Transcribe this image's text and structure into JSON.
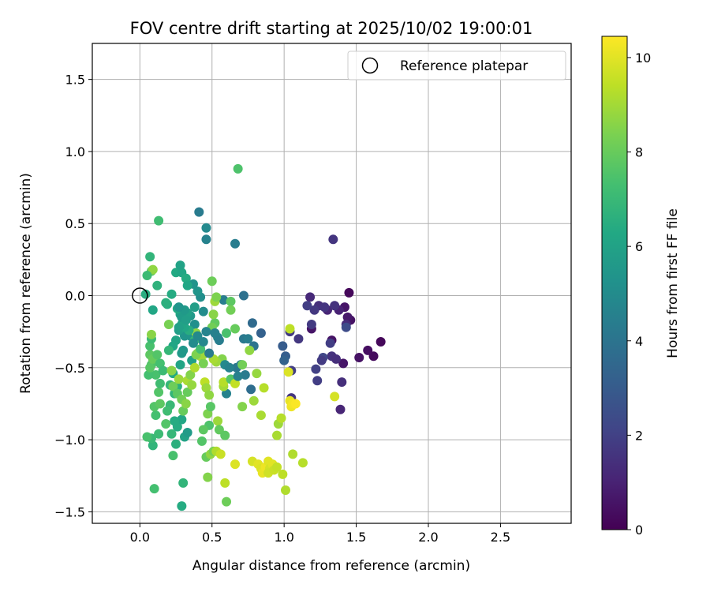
{
  "chart_data": {
    "type": "scatter",
    "title": "FOV centre drift starting at 2025/10/02 19:00:01",
    "xlabel": "Angular distance from reference (arcmin)",
    "ylabel": "Rotation from reference (arcmin)",
    "xlim": [
      -0.33,
      2.99
    ],
    "ylim": [
      -1.58,
      1.75
    ],
    "x_ticks": [
      0.0,
      0.5,
      1.0,
      1.5,
      2.0,
      2.5
    ],
    "x_tick_labels": [
      "0.0",
      "0.5",
      "1.0",
      "1.5",
      "2.0",
      "2.5"
    ],
    "y_ticks": [
      -1.5,
      -1.0,
      -0.5,
      0.0,
      0.5,
      1.0,
      1.5
    ],
    "y_tick_labels": [
      "−1.5",
      "−1.0",
      "−0.5",
      "0.0",
      "0.5",
      "1.0",
      "1.5"
    ],
    "grid": true,
    "legend": {
      "placement": "top-right",
      "entries": [
        {
          "label": "Reference platepar",
          "marker": "open-circle"
        }
      ]
    },
    "reference_point": {
      "x": 0.0,
      "y": 0.0
    },
    "colorbar": {
      "label": "Hours from first FF file",
      "range": [
        0,
        10.45
      ],
      "ticks": [
        0,
        2,
        4,
        6,
        8,
        10
      ],
      "tick_labels": [
        "0",
        "2",
        "4",
        "6",
        "8",
        "10"
      ],
      "colormap": "viridis"
    },
    "points": [
      [
        1.45,
        0.02,
        0.2
      ],
      [
        1.67,
        -0.32,
        0.2
      ],
      [
        1.62,
        -0.42,
        0.3
      ],
      [
        1.58,
        -0.38,
        0.4
      ],
      [
        1.52,
        -0.43,
        0.5
      ],
      [
        1.46,
        -0.17,
        0.5
      ],
      [
        1.42,
        -0.08,
        0.6
      ],
      [
        1.44,
        -0.15,
        0.7
      ],
      [
        1.41,
        -0.47,
        0.6
      ],
      [
        1.33,
        -0.31,
        0.5
      ],
      [
        1.19,
        -0.23,
        0.6
      ],
      [
        1.38,
        -0.1,
        1.0
      ],
      [
        1.3,
        -0.1,
        1.1
      ],
      [
        1.43,
        -0.2,
        1.3
      ],
      [
        1.34,
        0.39,
        1.6
      ],
      [
        1.35,
        -0.07,
        1.5
      ],
      [
        1.18,
        -0.01,
        1.2
      ],
      [
        1.24,
        -0.07,
        1.4
      ],
      [
        1.28,
        -0.08,
        1.6
      ],
      [
        1.21,
        -0.1,
        1.7
      ],
      [
        1.16,
        -0.07,
        1.9
      ],
      [
        1.19,
        -0.2,
        1.8
      ],
      [
        1.33,
        -0.42,
        1.5
      ],
      [
        1.36,
        -0.44,
        1.4
      ],
      [
        1.4,
        -0.6,
        1.4
      ],
      [
        1.39,
        -0.79,
        1.1
      ],
      [
        1.32,
        -0.33,
        1.9
      ],
      [
        1.27,
        -0.43,
        2.2
      ],
      [
        1.22,
        -0.51,
        2.0
      ],
      [
        1.23,
        -0.59,
        1.9
      ],
      [
        1.26,
        -0.45,
        1.8
      ],
      [
        1.1,
        -0.3,
        1.7
      ],
      [
        1.04,
        -0.25,
        1.8
      ],
      [
        1.05,
        -0.52,
        1.9
      ],
      [
        1.05,
        -0.71,
        1.6
      ],
      [
        1.43,
        -0.22,
        2.4
      ],
      [
        0.99,
        -0.35,
        3.0
      ],
      [
        1.01,
        -0.42,
        3.1
      ],
      [
        1.0,
        -0.45,
        3.3
      ],
      [
        0.84,
        -0.26,
        3.2
      ],
      [
        0.78,
        -0.19,
        3.6
      ],
      [
        0.72,
        0.0,
        3.9
      ],
      [
        0.79,
        -0.35,
        4.0
      ],
      [
        0.72,
        -0.3,
        4.2
      ],
      [
        0.75,
        -0.3,
        4.4
      ],
      [
        0.77,
        -0.65,
        3.7
      ],
      [
        0.73,
        -0.55,
        4.3
      ],
      [
        0.7,
        -0.48,
        4.5
      ],
      [
        0.67,
        -0.5,
        4.2
      ],
      [
        0.6,
        -0.68,
        4.6
      ],
      [
        0.62,
        -0.5,
        4.7
      ],
      [
        0.54,
        -0.29,
        4.8
      ],
      [
        0.58,
        -0.03,
        4.4
      ],
      [
        0.66,
        0.36,
        4.4
      ],
      [
        0.46,
        0.39,
        4.6
      ],
      [
        0.46,
        0.47,
        4.9
      ],
      [
        0.41,
        0.58,
        4.3
      ],
      [
        0.44,
        -0.11,
        5.0
      ],
      [
        0.42,
        -0.01,
        5.1
      ],
      [
        0.4,
        0.03,
        5.4
      ],
      [
        0.37,
        0.08,
        5.3
      ],
      [
        0.38,
        -0.2,
        5.2
      ],
      [
        0.35,
        -0.14,
        5.6
      ],
      [
        0.33,
        -0.12,
        5.9
      ],
      [
        0.31,
        -0.28,
        5.4
      ],
      [
        0.3,
        -0.38,
        5.5
      ],
      [
        0.29,
        -0.4,
        5.6
      ],
      [
        0.27,
        -0.24,
        5.8
      ],
      [
        0.28,
        -0.13,
        6.0
      ],
      [
        0.25,
        -0.31,
        6.1
      ],
      [
        0.23,
        -0.35,
        6.2
      ],
      [
        0.26,
        -0.09,
        6.3
      ],
      [
        0.22,
        0.01,
        6.4
      ],
      [
        0.19,
        -0.06,
        6.5
      ],
      [
        0.18,
        -0.05,
        6.6
      ],
      [
        0.25,
        0.16,
        6.3
      ],
      [
        0.29,
        0.16,
        6.2
      ],
      [
        0.28,
        0.21,
        6.0
      ],
      [
        0.32,
        0.12,
        6.4
      ],
      [
        0.33,
        0.07,
        6.2
      ],
      [
        0.38,
        -0.08,
        5.8
      ],
      [
        0.31,
        -0.17,
        5.9
      ],
      [
        0.35,
        -0.28,
        5.4
      ],
      [
        0.36,
        -0.45,
        5.9
      ],
      [
        0.28,
        -0.48,
        6.1
      ],
      [
        0.23,
        -0.54,
        6.3
      ],
      [
        0.26,
        -0.63,
        6.6
      ],
      [
        0.24,
        -0.68,
        6.8
      ],
      [
        0.21,
        -0.62,
        6.9
      ],
      [
        0.21,
        -0.76,
        7.0
      ],
      [
        0.19,
        -0.8,
        7.2
      ],
      [
        0.26,
        -0.91,
        6.4
      ],
      [
        0.25,
        -1.03,
        6.6
      ],
      [
        0.31,
        -0.98,
        6.0
      ],
      [
        0.33,
        -0.95,
        5.7
      ],
      [
        0.29,
        -0.86,
        6.2
      ],
      [
        0.24,
        -0.87,
        6.4
      ],
      [
        0.22,
        -0.96,
        6.9
      ],
      [
        0.23,
        -1.11,
        7.4
      ],
      [
        0.3,
        -1.3,
        6.8
      ],
      [
        0.29,
        -1.46,
        6.4
      ],
      [
        0.1,
        -1.34,
        7.3
      ],
      [
        0.09,
        -1.04,
        6.8
      ],
      [
        0.08,
        -0.99,
        7.0
      ],
      [
        0.05,
        -0.98,
        7.4
      ],
      [
        0.13,
        -0.96,
        7.1
      ],
      [
        0.18,
        -0.89,
        7.6
      ],
      [
        0.11,
        -0.83,
        7.3
      ],
      [
        0.1,
        -0.77,
        7.6
      ],
      [
        0.14,
        -0.75,
        7.8
      ],
      [
        0.13,
        -0.67,
        7.6
      ],
      [
        0.14,
        -0.61,
        7.2
      ],
      [
        0.11,
        -0.55,
        7.4
      ],
      [
        0.08,
        -0.48,
        7.5
      ],
      [
        0.06,
        -0.55,
        7.3
      ],
      [
        0.07,
        -0.5,
        7.7
      ],
      [
        0.07,
        -0.41,
        7.8
      ],
      [
        0.09,
        -0.44,
        8.0
      ],
      [
        0.12,
        -0.41,
        7.6
      ],
      [
        0.14,
        -0.47,
        7.3
      ],
      [
        0.16,
        -0.52,
        7.1
      ],
      [
        0.07,
        -0.35,
        7.4
      ],
      [
        0.08,
        -0.3,
        7.1
      ],
      [
        0.08,
        -0.27,
        8.6
      ],
      [
        0.09,
        -0.1,
        6.2
      ],
      [
        0.08,
        0.17,
        7.7
      ],
      [
        0.09,
        0.18,
        8.7
      ],
      [
        0.05,
        0.14,
        7.1
      ],
      [
        0.07,
        0.27,
        6.8
      ],
      [
        0.04,
        0.01,
        6.5
      ],
      [
        0.12,
        0.07,
        6.7
      ],
      [
        0.13,
        0.52,
        7.2
      ],
      [
        0.2,
        -0.2,
        8.3
      ],
      [
        0.2,
        -0.38,
        6.9
      ],
      [
        0.22,
        -0.52,
        8.6
      ],
      [
        0.23,
        -0.63,
        8.1
      ],
      [
        0.27,
        -0.58,
        8.9
      ],
      [
        0.26,
        -0.68,
        7.8
      ],
      [
        0.29,
        -0.72,
        8.2
      ],
      [
        0.3,
        -0.8,
        8.0
      ],
      [
        0.32,
        -0.75,
        8.6
      ],
      [
        0.33,
        -0.67,
        8.0
      ],
      [
        0.33,
        -0.59,
        9.1
      ],
      [
        0.35,
        -0.55,
        8.5
      ],
      [
        0.36,
        -0.62,
        8.8
      ],
      [
        0.38,
        -0.5,
        9.2
      ],
      [
        0.4,
        -0.4,
        8.7
      ],
      [
        0.42,
        -0.42,
        9.0
      ],
      [
        0.44,
        -0.47,
        8.3
      ],
      [
        0.45,
        -0.6,
        9.4
      ],
      [
        0.46,
        -0.64,
        8.9
      ],
      [
        0.48,
        -0.69,
        8.7
      ],
      [
        0.47,
        -0.82,
        8.4
      ],
      [
        0.49,
        -0.77,
        7.7
      ],
      [
        0.48,
        -0.9,
        7.5
      ],
      [
        0.44,
        -0.93,
        7.8
      ],
      [
        0.43,
        -1.01,
        7.6
      ],
      [
        0.46,
        -1.12,
        8.0
      ],
      [
        0.49,
        -1.1,
        8.7
      ],
      [
        0.51,
        -1.08,
        8.3
      ],
      [
        0.47,
        -1.26,
        8.5
      ],
      [
        0.53,
        -1.08,
        9.2
      ],
      [
        0.56,
        -1.1,
        9.6
      ],
      [
        0.59,
        -1.3,
        9.4
      ],
      [
        0.6,
        -1.43,
        8.1
      ],
      [
        0.66,
        -1.17,
        9.9
      ],
      [
        0.54,
        -0.87,
        8.9
      ],
      [
        0.55,
        -0.93,
        7.9
      ],
      [
        0.59,
        -0.97,
        7.8
      ],
      [
        0.58,
        -0.63,
        9.0
      ],
      [
        0.58,
        -0.6,
        9.3
      ],
      [
        0.63,
        -0.58,
        7.6
      ],
      [
        0.66,
        -0.61,
        9.5
      ],
      [
        0.71,
        -0.77,
        8.5
      ],
      [
        0.71,
        -0.48,
        8.2
      ],
      [
        0.76,
        -0.38,
        8.7
      ],
      [
        0.79,
        -0.73,
        8.9
      ],
      [
        0.81,
        -0.54,
        8.8
      ],
      [
        0.84,
        -0.83,
        9.1
      ],
      [
        0.86,
        -0.64,
        9.3
      ],
      [
        0.78,
        -1.15,
        9.8
      ],
      [
        0.82,
        -1.17,
        10.0
      ],
      [
        0.84,
        -1.2,
        9.9
      ],
      [
        0.85,
        -1.23,
        10.1
      ],
      [
        0.87,
        -1.19,
        10.2
      ],
      [
        0.89,
        -1.15,
        10.0
      ],
      [
        0.9,
        -1.2,
        9.8
      ],
      [
        0.92,
        -1.17,
        10.0
      ],
      [
        0.89,
        -1.23,
        9.7
      ],
      [
        0.93,
        -1.21,
        9.6
      ],
      [
        0.95,
        -0.97,
        9.1
      ],
      [
        0.96,
        -0.89,
        8.9
      ],
      [
        0.98,
        -0.85,
        9.3
      ],
      [
        0.95,
        -1.19,
        9.5
      ],
      [
        0.99,
        -1.24,
        9.4
      ],
      [
        1.01,
        -1.35,
        9.2
      ],
      [
        1.04,
        -0.73,
        10.1
      ],
      [
        1.05,
        -0.77,
        10.2
      ],
      [
        1.06,
        -0.75,
        10.3
      ],
      [
        1.08,
        -0.75,
        10.4
      ],
      [
        1.03,
        -0.53,
        9.9
      ],
      [
        1.04,
        -0.23,
        9.4
      ],
      [
        1.13,
        -1.16,
        9.3
      ],
      [
        1.06,
        -1.1,
        9.2
      ],
      [
        1.35,
        -0.7,
        9.8
      ],
      [
        0.68,
        0.88,
        7.5
      ],
      [
        0.63,
        -0.04,
        7.8
      ],
      [
        0.6,
        -0.26,
        7.4
      ],
      [
        0.52,
        -0.19,
        7.9
      ],
      [
        0.5,
        -0.22,
        8.2
      ],
      [
        0.51,
        -0.13,
        8.6
      ],
      [
        0.52,
        -0.04,
        8.9
      ],
      [
        0.5,
        0.1,
        8.1
      ],
      [
        0.53,
        -0.01,
        8.4
      ],
      [
        0.66,
        -0.23,
        8.0
      ],
      [
        0.63,
        -0.1,
        8.2
      ],
      [
        0.57,
        -0.44,
        8.5
      ],
      [
        0.53,
        -0.46,
        8.9
      ],
      [
        0.51,
        -0.44,
        9.1
      ],
      [
        0.44,
        -0.41,
        8.9
      ],
      [
        0.39,
        -0.41,
        8.4
      ],
      [
        0.39,
        -0.26,
        8.7
      ],
      [
        0.42,
        -0.37,
        7.3
      ],
      [
        0.38,
        -0.31,
        6.9
      ],
      [
        0.34,
        -0.24,
        6.5
      ],
      [
        0.31,
        -0.22,
        6.2
      ],
      [
        0.29,
        -0.2,
        6.1
      ],
      [
        0.27,
        -0.22,
        5.9
      ],
      [
        0.29,
        -0.15,
        5.7
      ],
      [
        0.32,
        -0.17,
        5.8
      ],
      [
        0.31,
        -0.1,
        5.6
      ],
      [
        0.27,
        -0.08,
        5.4
      ],
      [
        0.37,
        -0.33,
        5.0
      ],
      [
        0.4,
        -0.28,
        4.9
      ],
      [
        0.44,
        -0.32,
        4.8
      ],
      [
        0.46,
        -0.25,
        4.7
      ],
      [
        0.52,
        -0.26,
        4.5
      ],
      [
        0.55,
        -0.31,
        4.4
      ],
      [
        0.48,
        -0.4,
        4.3
      ],
      [
        0.59,
        -0.48,
        4.9
      ],
      [
        0.62,
        -0.5,
        4.6
      ],
      [
        0.68,
        -0.56,
        4.5
      ]
    ]
  }
}
